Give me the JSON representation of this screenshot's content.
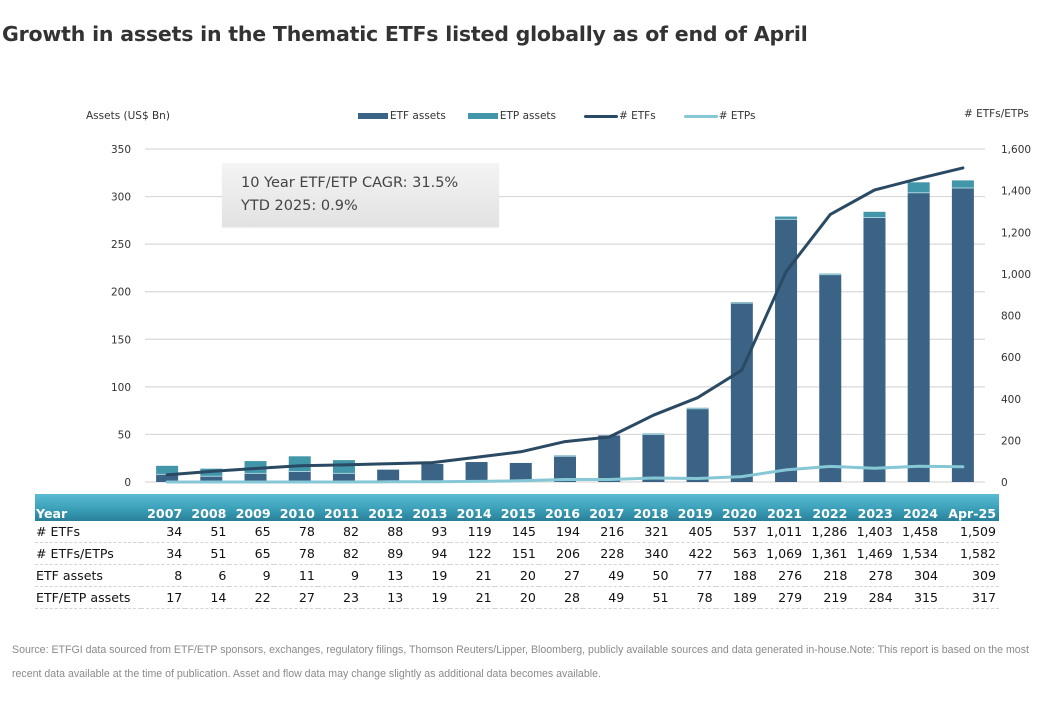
{
  "title": "Growth in assets in the Thematic ETFs listed globally as of end of April",
  "annotation": {
    "line1": "10 Year ETF/ETP CAGR: 31.5%",
    "line2": "YTD 2025: 0.9%"
  },
  "colors": {
    "etf_assets": "#3b6385",
    "etp_assets": "#4196a9",
    "etfs_line": "#2a4a63",
    "etps_line": "#86c7d5",
    "grid": "#d9d9d9",
    "table_header": "#3a9fb8"
  },
  "chart_data": {
    "type": "bar",
    "title": "Growth in assets in the Thematic ETFs listed globally as of end of April",
    "ylabel": "Assets (US$ Bn)",
    "y2label": "# ETFs/ETPs",
    "ylim": [
      0,
      350
    ],
    "y2lim": [
      0,
      1600
    ],
    "yticks": [
      "0",
      "50",
      "100",
      "150",
      "200",
      "250",
      "300",
      "350"
    ],
    "y2ticks": [
      "0",
      "200",
      "400",
      "600",
      "800",
      "1,000",
      "1,200",
      "1,400",
      "1,600"
    ],
    "grid": true,
    "legend_position": "top",
    "categories": [
      "2007",
      "2008",
      "2009",
      "2010",
      "2011",
      "2012",
      "2013",
      "2014",
      "2015",
      "2016",
      "2017",
      "2018",
      "2019",
      "2020",
      "2021",
      "2022",
      "2023",
      "2024",
      "Apr-25"
    ],
    "series": [
      {
        "name": "ETF assets",
        "kind": "bar-stack",
        "axis": "left",
        "values": [
          8,
          6,
          9,
          11,
          9,
          13,
          19,
          21,
          20,
          27,
          49,
          50,
          77,
          188,
          276,
          218,
          278,
          304,
          309
        ]
      },
      {
        "name": "ETP assets",
        "kind": "bar-stack",
        "axis": "left",
        "values": [
          9,
          8,
          13,
          16,
          14,
          0,
          0,
          0,
          0,
          1,
          0,
          1,
          1,
          1,
          3,
          1,
          6,
          11,
          8
        ]
      },
      {
        "name": "# ETFs",
        "kind": "line",
        "axis": "right",
        "values": [
          34,
          51,
          65,
          78,
          82,
          88,
          93,
          119,
          145,
          194,
          216,
          321,
          405,
          537,
          1011,
          1286,
          1403,
          1458,
          1509
        ]
      },
      {
        "name": "# ETPs",
        "kind": "line",
        "axis": "right",
        "values": [
          0,
          0,
          0,
          0,
          0,
          1,
          1,
          3,
          6,
          12,
          12,
          19,
          17,
          26,
          58,
          75,
          66,
          76,
          73
        ]
      }
    ]
  },
  "legend": [
    {
      "label": "ETF assets",
      "type": "bar",
      "color": "#3b6385"
    },
    {
      "label": "ETP assets",
      "type": "bar",
      "color": "#4196a9"
    },
    {
      "label": "# ETFs",
      "type": "line",
      "color": "#2a4a63"
    },
    {
      "label": "# ETPs",
      "type": "line",
      "color": "#86c7d5"
    }
  ],
  "table": {
    "header": [
      "Year",
      "2007",
      "2008",
      "2009",
      "2010",
      "2011",
      "2012",
      "2013",
      "2014",
      "2015",
      "2016",
      "2017",
      "2018",
      "2019",
      "2020",
      "2021",
      "2022",
      "2023",
      "2024",
      "Apr-25"
    ],
    "rows": [
      [
        "# ETFs",
        "34",
        "51",
        "65",
        "78",
        "82",
        "88",
        "93",
        "119",
        "145",
        "194",
        "216",
        "321",
        "405",
        "537",
        "1,011",
        "1,286",
        "1,403",
        "1,458",
        "1,509"
      ],
      [
        "# ETFs/ETPs",
        "34",
        "51",
        "65",
        "78",
        "82",
        "89",
        "94",
        "122",
        "151",
        "206",
        "228",
        "340",
        "422",
        "563",
        "1,069",
        "1,361",
        "1,469",
        "1,534",
        "1,582"
      ],
      [
        "ETF assets",
        "8",
        "6",
        "9",
        "11",
        "9",
        "13",
        "19",
        "21",
        "20",
        "27",
        "49",
        "50",
        "77",
        "188",
        "276",
        "218",
        "278",
        "304",
        "309"
      ],
      [
        "ETF/ETP assets",
        "17",
        "14",
        "22",
        "27",
        "23",
        "13",
        "19",
        "21",
        "20",
        "28",
        "49",
        "51",
        "78",
        "189",
        "279",
        "219",
        "284",
        "315",
        "317"
      ]
    ]
  },
  "source": "Source: ETFGI data sourced from ETF/ETP sponsors, exchanges, regulatory filings, Thomson Reuters/Lipper, Bloomberg, publicly available sources and data generated in-house.Note: This report is based on the most recent data available at the time of publication. Asset and flow data may change slightly as additional data becomes available."
}
